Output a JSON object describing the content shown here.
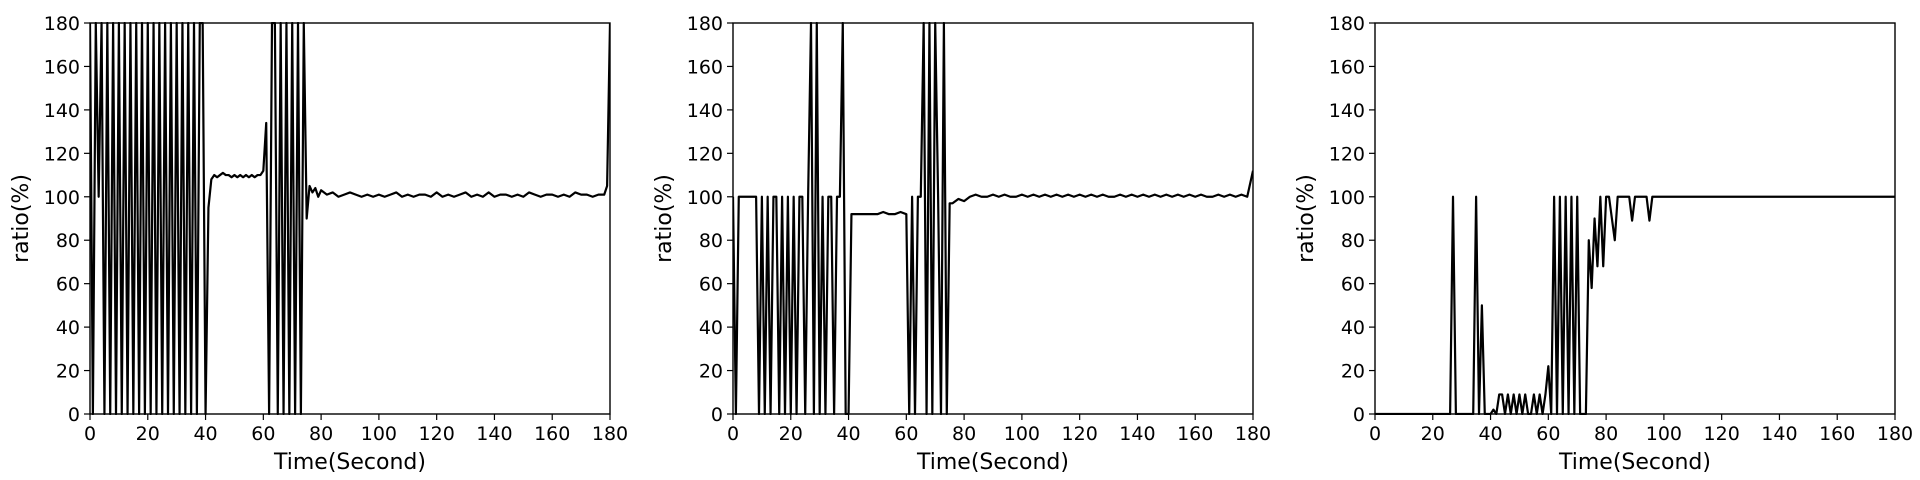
{
  "chart_data": [
    {
      "type": "line",
      "xlabel": "Time(Second)",
      "ylabel": "ratio(%)",
      "xlim": [
        0,
        180
      ],
      "ylim": [
        0,
        180
      ],
      "xticks": [
        "0",
        "20",
        "40",
        "60",
        "80",
        "100",
        "120",
        "140",
        "160",
        "180"
      ],
      "yticks": [
        "0",
        "20",
        "40",
        "60",
        "80",
        "100",
        "120",
        "140",
        "160",
        "180"
      ],
      "series": [
        {
          "x": [
            0,
            1,
            2,
            3,
            4,
            5,
            6,
            7,
            8,
            9,
            10,
            11,
            12,
            13,
            14,
            15,
            16,
            17,
            18,
            19,
            20,
            21,
            22,
            23,
            24,
            25,
            26,
            27,
            28,
            29,
            30,
            31,
            32,
            33,
            34,
            35,
            36,
            37,
            38,
            39,
            40,
            41,
            42,
            43,
            44,
            45,
            46,
            47,
            48,
            49,
            50,
            51,
            52,
            53,
            54,
            55,
            56,
            57,
            58,
            59,
            60,
            61,
            62,
            63,
            64,
            65,
            66,
            67,
            68,
            69,
            70,
            71,
            72,
            73,
            74,
            75,
            76,
            77,
            78,
            79,
            80,
            82,
            84,
            86,
            88,
            90,
            92,
            94,
            96,
            98,
            100,
            102,
            104,
            106,
            108,
            110,
            112,
            114,
            116,
            118,
            120,
            122,
            124,
            126,
            128,
            130,
            132,
            134,
            136,
            138,
            140,
            142,
            144,
            146,
            148,
            150,
            152,
            154,
            156,
            158,
            160,
            162,
            164,
            166,
            168,
            170,
            172,
            174,
            176,
            178,
            179,
            180
          ],
          "y": [
            180,
            0,
            180,
            100,
            180,
            0,
            180,
            0,
            180,
            0,
            180,
            0,
            180,
            0,
            180,
            0,
            180,
            0,
            180,
            0,
            180,
            0,
            180,
            0,
            180,
            0,
            180,
            0,
            180,
            0,
            180,
            0,
            180,
            0,
            180,
            0,
            180,
            0,
            180,
            180,
            0,
            95,
            108,
            110,
            109,
            110,
            111,
            110,
            110,
            109,
            110,
            109,
            110,
            109,
            110,
            109,
            110,
            109,
            110,
            110,
            112,
            134,
            0,
            180,
            180,
            0,
            180,
            0,
            180,
            0,
            180,
            0,
            180,
            0,
            180,
            90,
            105,
            102,
            104,
            100,
            103,
            101,
            102,
            100,
            101,
            102,
            101,
            100,
            101,
            100,
            101,
            100,
            101,
            102,
            100,
            101,
            100,
            101,
            101,
            100,
            102,
            100,
            101,
            100,
            101,
            102,
            100,
            101,
            100,
            102,
            100,
            101,
            101,
            100,
            101,
            100,
            102,
            101,
            100,
            101,
            101,
            100,
            101,
            100,
            102,
            101,
            101,
            100,
            101,
            101,
            105,
            180
          ]
        }
      ]
    },
    {
      "type": "line",
      "xlabel": "Time(Second)",
      "ylabel": "ratio(%)",
      "xlim": [
        0,
        180
      ],
      "ylim": [
        0,
        180
      ],
      "xticks": [
        "0",
        "20",
        "40",
        "60",
        "80",
        "100",
        "120",
        "140",
        "160",
        "180"
      ],
      "yticks": [
        "0",
        "20",
        "40",
        "60",
        "80",
        "100",
        "120",
        "140",
        "160",
        "180"
      ],
      "series": [
        {
          "x": [
            0,
            1,
            2,
            3,
            4,
            5,
            6,
            7,
            8,
            9,
            10,
            11,
            12,
            13,
            14,
            15,
            16,
            17,
            18,
            19,
            20,
            21,
            22,
            23,
            24,
            25,
            26,
            27,
            28,
            29,
            30,
            31,
            32,
            33,
            34,
            35,
            36,
            37,
            38,
            39,
            40,
            41,
            42,
            44,
            46,
            48,
            50,
            52,
            54,
            56,
            58,
            60,
            61,
            62,
            63,
            64,
            65,
            66,
            67,
            68,
            69,
            70,
            71,
            72,
            73,
            74,
            75,
            76,
            78,
            80,
            82,
            84,
            86,
            88,
            90,
            92,
            94,
            96,
            98,
            100,
            102,
            104,
            106,
            108,
            110,
            112,
            114,
            116,
            118,
            120,
            122,
            124,
            126,
            128,
            130,
            132,
            134,
            136,
            138,
            140,
            142,
            144,
            146,
            148,
            150,
            152,
            154,
            156,
            158,
            160,
            162,
            164,
            166,
            168,
            170,
            172,
            174,
            176,
            178,
            180
          ],
          "y": [
            100,
            0,
            100,
            100,
            100,
            100,
            100,
            100,
            100,
            0,
            100,
            0,
            100,
            0,
            100,
            100,
            0,
            100,
            0,
            100,
            0,
            100,
            0,
            100,
            100,
            0,
            100,
            180,
            0,
            180,
            0,
            100,
            0,
            100,
            100,
            0,
            100,
            100,
            180,
            0,
            0,
            92,
            92,
            92,
            92,
            92,
            92,
            93,
            92,
            92,
            93,
            92,
            0,
            100,
            0,
            100,
            100,
            180,
            0,
            180,
            0,
            180,
            100,
            0,
            180,
            0,
            97,
            97,
            99,
            98,
            100,
            101,
            100,
            100,
            101,
            100,
            101,
            100,
            100,
            101,
            100,
            101,
            100,
            101,
            100,
            101,
            100,
            101,
            100,
            101,
            100,
            101,
            100,
            101,
            100,
            100,
            101,
            100,
            101,
            100,
            101,
            100,
            101,
            100,
            101,
            100,
            101,
            100,
            101,
            100,
            101,
            100,
            100,
            101,
            100,
            101,
            100,
            101,
            100,
            112
          ]
        }
      ]
    },
    {
      "type": "line",
      "xlabel": "Time(Second)",
      "ylabel": "ratio(%)",
      "xlim": [
        0,
        180
      ],
      "ylim": [
        0,
        180
      ],
      "xticks": [
        "0",
        "20",
        "40",
        "60",
        "80",
        "100",
        "120",
        "140",
        "160",
        "180"
      ],
      "yticks": [
        "0",
        "20",
        "40",
        "60",
        "80",
        "100",
        "120",
        "140",
        "160",
        "180"
      ],
      "series": [
        {
          "x": [
            0,
            26,
            27,
            28,
            34,
            35,
            36,
            37,
            38,
            40,
            41,
            42,
            43,
            44,
            45,
            46,
            47,
            48,
            49,
            50,
            51,
            52,
            53,
            54,
            55,
            56,
            57,
            58,
            59,
            60,
            61,
            62,
            63,
            64,
            65,
            66,
            67,
            68,
            69,
            70,
            71,
            72,
            73,
            74,
            75,
            76,
            77,
            78,
            79,
            80,
            81,
            82,
            83,
            84,
            85,
            86,
            87,
            88,
            89,
            90,
            91,
            92,
            93,
            94,
            95,
            96,
            97,
            98,
            99,
            100,
            101,
            102,
            120,
            140,
            160,
            180
          ],
          "y": [
            0,
            0,
            100,
            0,
            0,
            100,
            0,
            50,
            0,
            0,
            2,
            0,
            9,
            9,
            0,
            9,
            0,
            9,
            0,
            9,
            0,
            9,
            0,
            0,
            9,
            0,
            9,
            0,
            9,
            22,
            0,
            100,
            0,
            100,
            0,
            100,
            0,
            100,
            0,
            100,
            0,
            0,
            0,
            80,
            58,
            90,
            68,
            100,
            68,
            100,
            100,
            90,
            80,
            100,
            100,
            100,
            100,
            100,
            89,
            100,
            100,
            100,
            100,
            100,
            89,
            100,
            100,
            100,
            100,
            100,
            100,
            100,
            100,
            100,
            100,
            100
          ]
        }
      ]
    }
  ]
}
